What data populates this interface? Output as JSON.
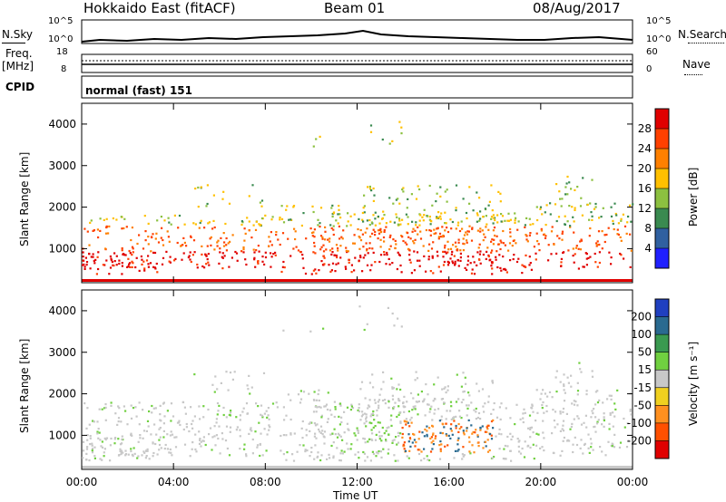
{
  "header": {
    "station": "Hokkaido East (fitACF)",
    "beam": "Beam 01",
    "date": "08/Aug/2017"
  },
  "top_strip": {
    "nsky_label": "N.Sky",
    "nsky_ticks": [
      "10^5",
      "10^0"
    ],
    "nsearch_label": "N.Search",
    "nsearch_ticks": [
      "10^5",
      "10^0"
    ],
    "freq_label": "Freq.",
    "freq_unit": "[MHz]",
    "freq_ticks": [
      "18",
      "8"
    ],
    "nave_label": "Nave",
    "nave_ticks": [
      "60",
      "0"
    ],
    "cpid_label": "CPID",
    "cpid_value": "normal (fast) 151"
  },
  "chart_data": [
    {
      "type": "heatmap",
      "name": "power",
      "ylabel": "Slant Range [km]",
      "yticks": [
        "4000",
        "3000",
        "2000",
        "1000"
      ],
      "ylim": [
        180,
        4500
      ],
      "colorbar_label": "Power [dB]",
      "colorbar_ticks": [
        "28",
        "24",
        "20",
        "16",
        "12",
        "8",
        "4"
      ],
      "colorbar_colors": [
        "#e00000",
        "#ff4000",
        "#ff8000",
        "#ffc000",
        "#8cc040",
        "#3a8a50",
        "#3060a0",
        "#2020ff"
      ]
    },
    {
      "type": "heatmap",
      "name": "velocity",
      "ylabel": "Slant Range [km]",
      "yticks": [
        "4000",
        "3000",
        "2000",
        "1000"
      ],
      "ylim": [
        180,
        4500
      ],
      "colorbar_label": "Velocity [m s⁻¹]",
      "colorbar_ticks": [
        "200",
        "100",
        "50",
        "15",
        "-15",
        "-50",
        "-100",
        "-200"
      ],
      "colorbar_colors": [
        "#2040c0",
        "#2a6a90",
        "#3a9a50",
        "#70d040",
        "#c8c8c8",
        "#f0d020",
        "#ff9020",
        "#ff5000",
        "#e00000"
      ]
    }
  ],
  "xaxis": {
    "label": "Time UT",
    "ticks": [
      "00:00",
      "04:00",
      "08:00",
      "12:00",
      "16:00",
      "20:00",
      "00:00"
    ]
  }
}
